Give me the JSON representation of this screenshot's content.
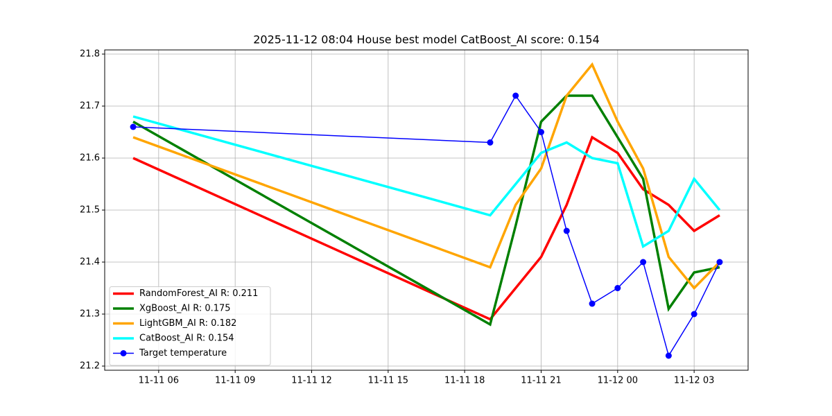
{
  "chart_data": {
    "type": "line",
    "title": "2025-11-12 08:04 House best model CatBoost_AI score: 0.154",
    "x": [
      "11-11 05:00",
      "11-11 19:00",
      "11-11 20:00",
      "11-11 21:00",
      "11-11 22:00",
      "11-11 23:00",
      "11-12 00:00",
      "11-12 01:00",
      "11-12 02:00",
      "11-12 03:00",
      "11-12 04:00"
    ],
    "xlim": [
      "11-11 03:53",
      "11-12 05:07"
    ],
    "xticks": [
      "11-11 06",
      "11-11 09",
      "11-11 12",
      "11-11 15",
      "11-11 18",
      "11-11 21",
      "11-12 00",
      "11-12 03"
    ],
    "ylim": [
      21.192,
      21.808
    ],
    "yticks": [
      21.2,
      21.3,
      21.4,
      21.5,
      21.6,
      21.7,
      21.8
    ],
    "grid": true,
    "legend": "lower left",
    "series": [
      {
        "name": "RandomForest_AI R: 0.211",
        "color": "#ff0000",
        "values": [
          21.6,
          21.29,
          21.35,
          21.41,
          21.51,
          21.64,
          21.61,
          21.54,
          21.51,
          21.46,
          21.49
        ]
      },
      {
        "name": "XgBoost_AI R: 0.175",
        "color": "#008000",
        "values": [
          21.67,
          21.28,
          21.47,
          21.67,
          21.72,
          21.72,
          21.64,
          21.56,
          21.31,
          21.38,
          21.39
        ]
      },
      {
        "name": "LightGBM_AI R: 0.182",
        "color": "#ffa500",
        "values": [
          21.64,
          21.39,
          21.51,
          21.58,
          21.72,
          21.78,
          21.67,
          21.58,
          21.41,
          21.35,
          21.4
        ]
      },
      {
        "name": "CatBoost_AI R: 0.154",
        "color": "#00ffff",
        "values": [
          21.68,
          21.49,
          21.55,
          21.61,
          21.63,
          21.6,
          21.59,
          21.43,
          21.46,
          21.56,
          21.5
        ]
      },
      {
        "name": "Target temperature",
        "color": "#0000ff",
        "markers": true,
        "values": [
          21.66,
          21.63,
          21.72,
          21.65,
          21.46,
          21.32,
          21.35,
          21.4,
          21.22,
          21.3,
          21.4
        ]
      }
    ]
  }
}
